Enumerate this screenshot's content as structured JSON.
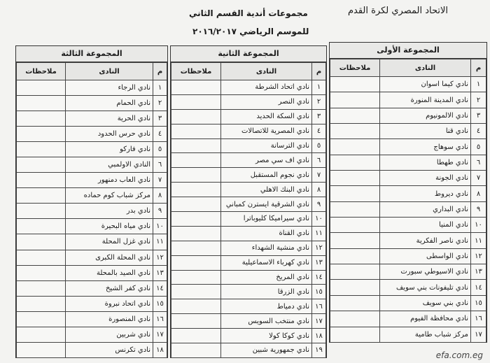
{
  "header": {
    "organization": "الاتحاد المصري لكرة القدم",
    "title": "مجموعات أندية القسم الثاني",
    "subtitle": "للموسم الرياضي ٢٠١٦/٢٠١٧"
  },
  "groups": [
    {
      "title": "المجموعة الأولى",
      "columns": [
        "م",
        "النادى",
        "ملاحظات"
      ],
      "rows": [
        [
          "١",
          "نادي كيما اسوان"
        ],
        [
          "٢",
          "نادي المدينة المنورة"
        ],
        [
          "٣",
          "نادي الالمونيوم"
        ],
        [
          "٤",
          "نادي قنا"
        ],
        [
          "٥",
          "نادي سوهاج"
        ],
        [
          "٦",
          "نادي طهطا"
        ],
        [
          "٧",
          "نادي الجونة"
        ],
        [
          "٨",
          "نادي ديروط"
        ],
        [
          "٩",
          "نادي البداري"
        ],
        [
          "١٠",
          "نادي المنيا"
        ],
        [
          "١١",
          "نادي ناصر الفكرية"
        ],
        [
          "١٢",
          "نادي الواسطى"
        ],
        [
          "١٣",
          "نادي الاسيوطي سبورت"
        ],
        [
          "١٤",
          "نادي تليفونات بني سويف"
        ],
        [
          "١٥",
          "نادي بني سويف"
        ],
        [
          "١٦",
          "نادي محافظة الفيوم"
        ],
        [
          "١٧",
          "مركز شباب طامية"
        ]
      ]
    },
    {
      "title": "المجموعة الثانية",
      "columns": [
        "م",
        "النادى",
        "ملاحظات"
      ],
      "rows": [
        [
          "١",
          "نادي اتحاد الشرطة"
        ],
        [
          "٢",
          "نادي النصر"
        ],
        [
          "٣",
          "نادي السكة الحديد"
        ],
        [
          "٤",
          "نادي المصرية للاتصالات"
        ],
        [
          "٥",
          "نادي الترسانة"
        ],
        [
          "٦",
          "نادي اف سي مصر"
        ],
        [
          "٧",
          "نادي نجوم المستقبل"
        ],
        [
          "٨",
          "نادي البنك الاهلي"
        ],
        [
          "٩",
          "نادي الشرقية ايسترن كمباني"
        ],
        [
          "١٠",
          "نادي سيراميكا كليوباترا"
        ],
        [
          "١١",
          "نادي القناة"
        ],
        [
          "١٢",
          "نادي منشية الشهداء"
        ],
        [
          "١٣",
          "نادي كهرباء الاسماعيلية"
        ],
        [
          "١٤",
          "نادي المريخ"
        ],
        [
          "١٥",
          "نادي الزرقا"
        ],
        [
          "١٦",
          "نادي دمياط"
        ],
        [
          "١٧",
          "نادي منتخب السويس"
        ],
        [
          "١٨",
          "نادي كوكا كولا"
        ],
        [
          "١٩",
          "نادي جمهورية شبين"
        ]
      ]
    },
    {
      "title": "المجموعة الثالثة",
      "columns": [
        "م",
        "النادى",
        "ملاحظات"
      ],
      "rows": [
        [
          "١",
          "نادي الرجاء"
        ],
        [
          "٢",
          "نادي الحمام"
        ],
        [
          "٣",
          "نادي الحرية"
        ],
        [
          "٤",
          "نادي حرس الحدود"
        ],
        [
          "٥",
          "نادي فاركو"
        ],
        [
          "٦",
          "النادي الاولمبي"
        ],
        [
          "٧",
          "نادي العاب دمنهور"
        ],
        [
          "٨",
          "مركز شباب كوم حماده"
        ],
        [
          "٩",
          "نادي بدر"
        ],
        [
          "١٠",
          "نادي مياه البحيرة"
        ],
        [
          "١١",
          "نادي غزل المحلة"
        ],
        [
          "١٢",
          "نادي المحلة الكبرى"
        ],
        [
          "١٣",
          "نادي الصيد بالمحلة"
        ],
        [
          "١٤",
          "نادي كفر الشيخ"
        ],
        [
          "١٥",
          "نادي اتحاد نبروة"
        ],
        [
          "١٦",
          "نادي المنصورة"
        ],
        [
          "١٧",
          "نادي شربين"
        ],
        [
          "١٨",
          "نادي تكرنس"
        ]
      ]
    }
  ],
  "watermark": "efa.com.eg"
}
